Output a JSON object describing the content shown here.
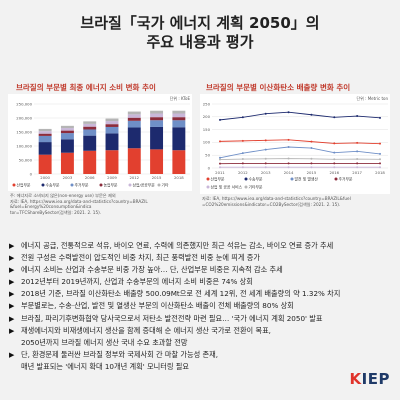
{
  "header": {
    "title_line1": "브라질「국가 에너지 계획 2050」의",
    "title_line2": "주요 내용과 평가"
  },
  "chart_data": [
    {
      "type": "bar",
      "stacked": true,
      "title": "브라질의 부문별 최종 에너지 소비 변화 추이",
      "unit_label": "단위 : KToE",
      "categories": [
        "2000",
        "2003",
        "2006",
        "2009",
        "2012",
        "2015",
        "2018"
      ],
      "ylim": [
        0,
        250000
      ],
      "y_ticks": [
        "0",
        "50,000",
        "100,000",
        "150,000",
        "200,000",
        "250,000"
      ],
      "series": [
        {
          "name": "산업부문",
          "color": "#e2402f",
          "values": [
            69000,
            76000,
            83000,
            85000,
            92000,
            88000,
            85000
          ]
        },
        {
          "name": "수송부문",
          "color": "#1d2a6e",
          "values": [
            45000,
            48000,
            54000,
            60000,
            74000,
            80000,
            82000
          ]
        },
        {
          "name": "주거부문",
          "color": "#6f8fc7",
          "values": [
            22000,
            22000,
            22000,
            23000,
            24000,
            24000,
            25000
          ]
        },
        {
          "name": "농업부문",
          "color": "#8c2c3c",
          "values": [
            8000,
            9000,
            10000,
            10000,
            11000,
            11000,
            11000
          ]
        },
        {
          "name": "상업/공공부문",
          "color": "#c9b7d9",
          "values": [
            9000,
            9000,
            10000,
            11000,
            12000,
            13000,
            13000
          ]
        },
        {
          "name": "기타",
          "color": "#b5b5b5",
          "values": [
            8000,
            8000,
            9000,
            9000,
            10000,
            10000,
            10000
          ]
        }
      ],
      "grid": true,
      "legend": "bottom",
      "source": "주: 에너지로 소비되지 않은(non-energy use) 부문은 제외\n자료: IEA, https://www.iea.org/data-and-statistics?country=BRAZIL\n&fuel=Energy%20consumption&indica\ntor=TFCShareBySector(검색일: 2021. 2. 15)."
    },
    {
      "type": "line",
      "title": "브라질의 부문별 이산화탄소 배출량 변화 추이",
      "unit_label": "단위 : Metric ton",
      "categories": [
        "2011",
        "2012",
        "2013",
        "2014",
        "2015",
        "2016",
        "2017",
        "2018"
      ],
      "ylim": [
        0,
        250
      ],
      "y_ticks": [
        "0",
        "50",
        "100",
        "150",
        "200",
        "250"
      ],
      "series": [
        {
          "name": "산업부문",
          "color": "#e2402f",
          "values": [
            104,
            106,
            108,
            110,
            103,
            96,
            98,
            95
          ]
        },
        {
          "name": "수송부문",
          "color": "#1d2a6e",
          "values": [
            188,
            198,
            212,
            218,
            208,
            198,
            203,
            196
          ]
        },
        {
          "name": "발전 및 열생산",
          "color": "#6f8fc7",
          "values": [
            40,
            58,
            72,
            82,
            78,
            60,
            65,
            55
          ]
        },
        {
          "name": "주거부문",
          "color": "#8c2c3c",
          "values": [
            17,
            18,
            18,
            18,
            18,
            18,
            18,
            18
          ]
        },
        {
          "name": "상업 및 공공 서비스",
          "color": "#c9b7d9",
          "values": [
            3,
            3,
            3,
            3,
            3,
            3,
            3,
            3
          ]
        },
        {
          "name": "기타부문",
          "color": "#b5b5b5",
          "values": [
            33,
            35,
            36,
            37,
            36,
            34,
            35,
            34
          ]
        }
      ],
      "grid": true,
      "legend": "bottom",
      "source": "자료: IEA, https://www.iea.org/data-and-statistics?country=BRAZIL&fuel\n=CO2%20emissions&indicator=CO2BySector(검색일: 2021. 2. 15)."
    }
  ],
  "bullets": [
    [
      "에너지 공급, 전통적으로 석유, 바이오 연료, 수력에 의존했지만 최근 석유는 감소, 바이오 연료 증가 추세"
    ],
    [
      "전원 구성은 수력발전이 압도적인 비중 차지, 최근 풍력발전 비중 눈에 띄게 증가"
    ],
    [
      "에너지 소비는 산업과 수송부문 비중 가장 높아… 단, 산업부문 비중은 지속적 감소 추세"
    ],
    [
      "2012년부터 2019년까지, 산업과 수송부문의 에너지 소비 비중은 74% 상회"
    ],
    [
      "2018년 기준, 브라질 이산화탄소 배출량 500.09Mt으로 전 세계 12위, 전 세계 배출량의 약 1.32% 차지"
    ],
    [
      "부문별로는, 수송·산업, 발전 및 열생산 부문의 이산화탄소 배출이 전체 배출량의 80% 상회"
    ],
    [
      "브라질, 파리기후변화협약 당사국으로서 저탄소 발전전략 마련 필요… '국가 에너지 계획 2050' 발표"
    ],
    [
      "재생에너지와 비재생에너지 생산을 함께 증대해 순 에너지 생산 국가로 전환이 목표,",
      "2050년까지 브라질 에너지 생산 국내 수요 초과할 전망"
    ],
    [
      "단, 환경문제 둘러싼 브라질 정부와 국제사회 간 마찰 가능성 존재,",
      "매년 발표되는 '에너지 확대 10개년 계획' 모니터링 필요"
    ]
  ],
  "logo": {
    "k": "K",
    "rest": "IEP"
  }
}
